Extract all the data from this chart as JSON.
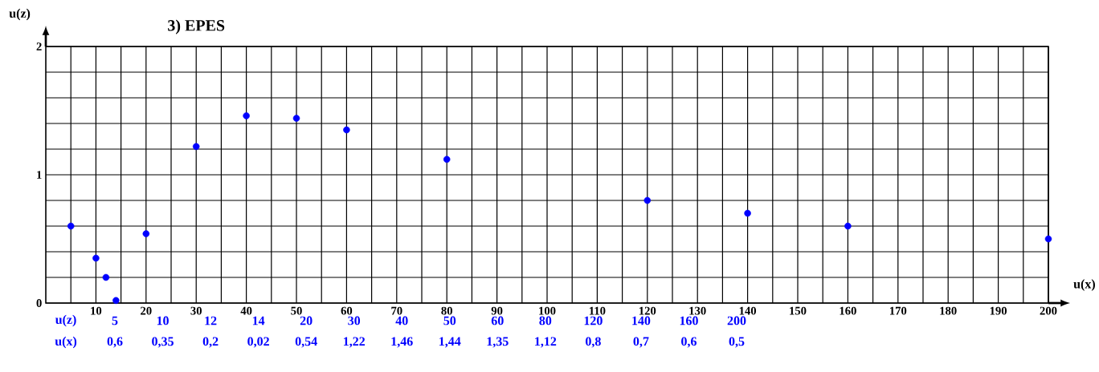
{
  "chart_data": {
    "type": "scatter",
    "title": "3) EPES",
    "xlabel": "u(x)",
    "ylabel": "u(z)",
    "annotations": [
      "u(z)",
      "5",
      "10",
      "12",
      "14",
      "20",
      "30",
      "40",
      "50",
      "60",
      "80",
      "120",
      "140",
      "160",
      "200",
      "u(x)",
      "0,6",
      "0,35",
      "0,2",
      "0,02",
      "0,54",
      "1,22",
      "1,46",
      "1,44",
      "1,35",
      "1,12",
      "0,8",
      "0,7",
      "0,6",
      "0,5"
    ],
    "x": [
      5,
      10,
      12,
      14,
      20,
      30,
      40,
      50,
      60,
      80,
      120,
      140,
      160,
      200
    ],
    "values": [
      0.6,
      0.35,
      0.2,
      0.02,
      0.54,
      1.22,
      1.46,
      1.44,
      1.35,
      1.12,
      0.8,
      0.7,
      0.6,
      0.5
    ],
    "color": "#0000ff",
    "marker": "circle",
    "grid": true,
    "xlim": [
      0,
      200
    ],
    "ylim": [
      0,
      2
    ],
    "xticks": [
      {
        "value": 5,
        "label": null
      },
      10,
      {
        "value": 15,
        "label": null
      },
      20,
      {
        "value": 25,
        "label": null
      },
      30,
      {
        "value": 35,
        "label": null
      },
      40,
      {
        "value": 45,
        "label": null
      },
      50,
      {
        "value": 55,
        "label": null
      },
      60,
      {
        "value": 65,
        "label": null
      },
      70,
      {
        "value": 75,
        "label": null
      },
      80,
      {
        "value": 85,
        "label": null
      },
      90,
      {
        "value": 95,
        "label": null
      },
      100,
      {
        "value": 105,
        "label": null
      },
      110,
      {
        "value": 115,
        "label": null
      },
      120,
      {
        "value": 125,
        "label": null
      },
      130,
      {
        "value": 135,
        "label": null
      },
      140,
      {
        "value": 145,
        "label": null
      },
      150,
      {
        "value": 155,
        "label": null
      },
      160,
      {
        "value": 165,
        "label": null
      },
      170,
      {
        "value": 175,
        "label": null
      },
      180,
      {
        "value": 185,
        "label": null
      },
      190,
      {
        "value": 195,
        "label": null
      },
      200
    ],
    "yticks": [
      0,
      {
        "value": 0.2,
        "label": null
      },
      {
        "value": 0.4,
        "label": null
      },
      {
        "value": 0.6,
        "label": null
      },
      {
        "value": 0.8,
        "label": null
      },
      1,
      {
        "value": 1.2,
        "label": null
      },
      {
        "value": 1.4,
        "label": null
      },
      {
        "value": 1.6,
        "label": null
      },
      {
        "value": 1.8,
        "label": null
      },
      2
    ]
  }
}
